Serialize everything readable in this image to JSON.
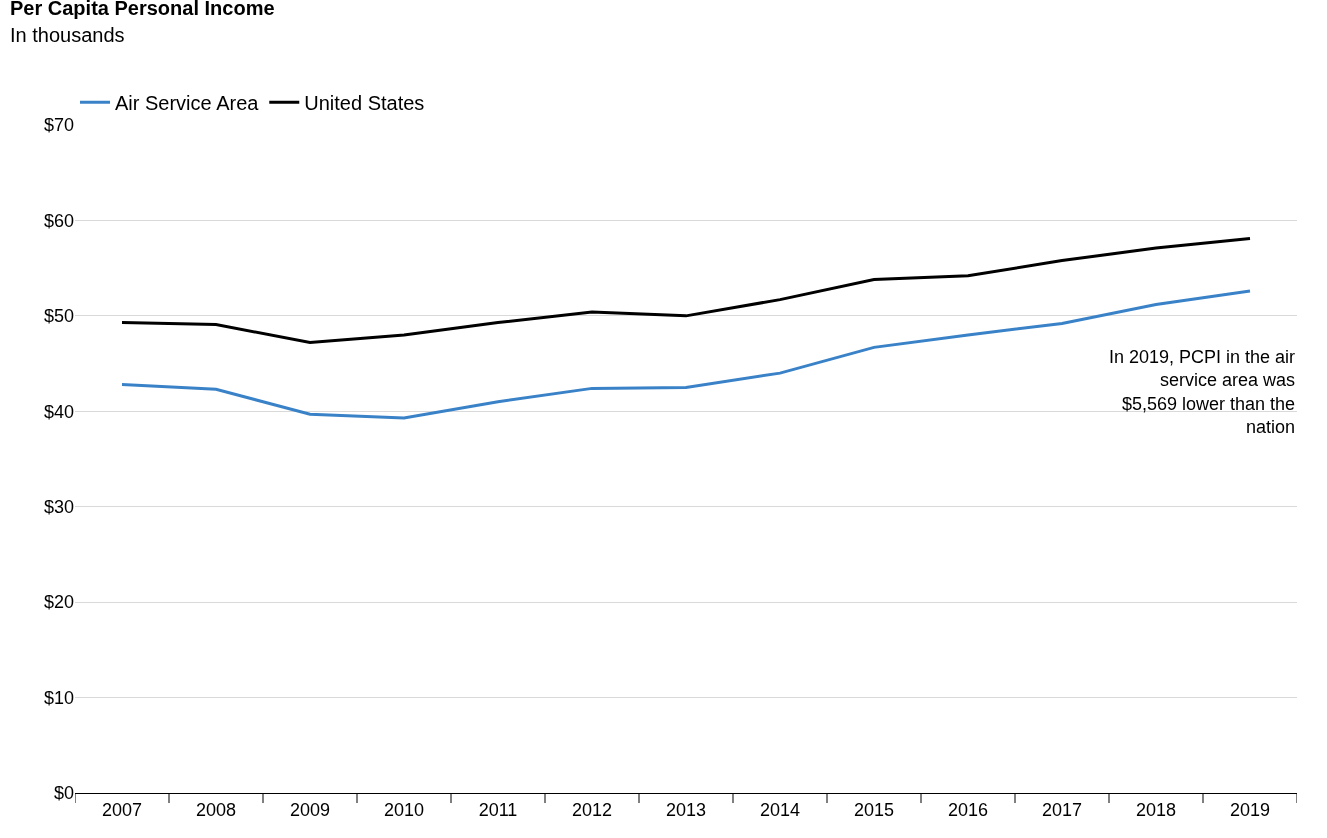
{
  "chart_data": {
    "type": "line",
    "title": "Per Capita Personal Income",
    "subtitle": "In thousands",
    "categories": [
      "2007",
      "2008",
      "2009",
      "2010",
      "2011",
      "2012",
      "2013",
      "2014",
      "2015",
      "2016",
      "2017",
      "2018",
      "2019"
    ],
    "series": [
      {
        "name": "Air Service Area",
        "color": "#3a82c8",
        "values": [
          42.8,
          42.3,
          39.7,
          39.3,
          41.0,
          42.4,
          42.5,
          44.0,
          46.7,
          48.0,
          49.2,
          51.2,
          52.6
        ]
      },
      {
        "name": "United States",
        "color": "#000000",
        "values": [
          49.3,
          49.1,
          47.2,
          48.0,
          49.3,
          50.4,
          50.0,
          51.7,
          53.8,
          54.2,
          55.8,
          57.1,
          58.1
        ]
      }
    ],
    "ylim": [
      0,
      70
    ],
    "yticks": [
      {
        "value": 0,
        "label": "$0"
      },
      {
        "value": 10,
        "label": "$10"
      },
      {
        "value": 20,
        "label": "$20"
      },
      {
        "value": 30,
        "label": "$30"
      },
      {
        "value": 40,
        "label": "$40"
      },
      {
        "value": 50,
        "label": "$50"
      },
      {
        "value": 60,
        "label": "$60"
      },
      {
        "value": 70,
        "label": "$70"
      }
    ],
    "grid": "y",
    "legend": "top left",
    "marker": "none",
    "line_style": "solid",
    "annotations": [
      "In 2019, PCPI in the air\nservice area was\n$5,569 lower than the\nnation"
    ]
  }
}
